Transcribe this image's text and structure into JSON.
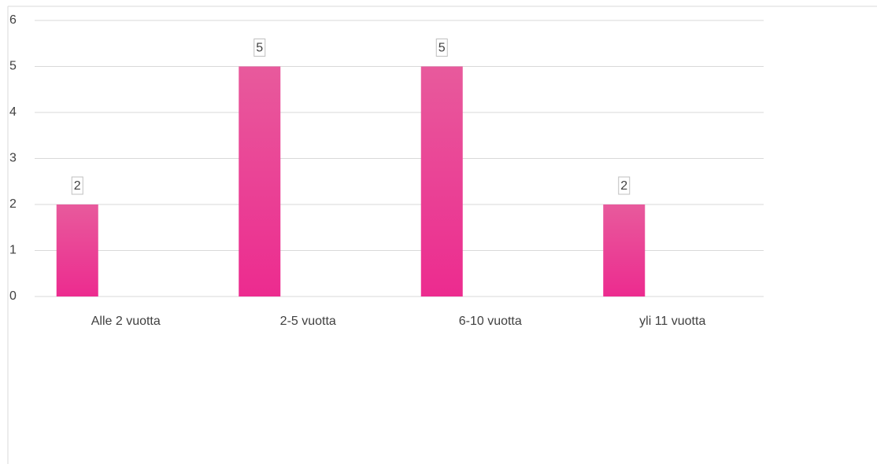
{
  "chart_data": {
    "type": "bar",
    "categories": [
      "Alle 2 vuotta",
      "2-5 vuotta",
      "6-10 vuotta",
      "yli 11 vuotta"
    ],
    "values": [
      2,
      5,
      5,
      2
    ],
    "color": "#ec2b8f",
    "ylim": [
      0,
      6
    ],
    "yticks": [
      0,
      1,
      2,
      3,
      4,
      5,
      6
    ],
    "grid": true
  }
}
